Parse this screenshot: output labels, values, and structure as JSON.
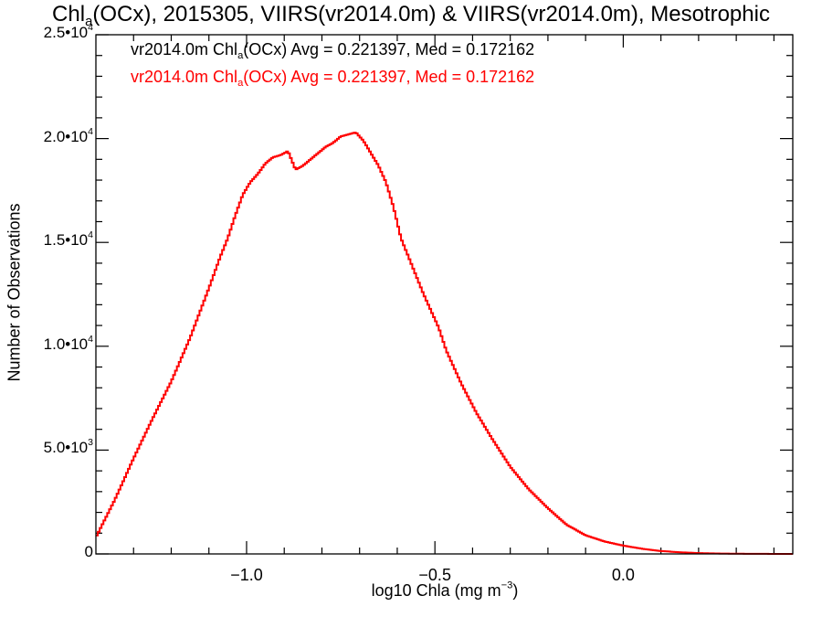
{
  "chart_data": {
    "type": "line",
    "title": "Chlₐ(OCx), 2015305, VIIRS(vr2014.0m) & VIIRS(vr2014.0m), Mesotrophic",
    "title_parts": {
      "pre": "Chl",
      "sub": "a",
      "post": "(OCx), 2015305, VIIRS(vr2014.0m) & VIIRS(vr2014.0m), Mesotrophic"
    },
    "xlabel": "log10 Chla (mg m⁻³)",
    "xlabel_parts": {
      "pre": "log10 Chla (mg m",
      "sup": "−3",
      "post": ")"
    },
    "ylabel": "Number of Observations",
    "xlim": [
      -1.4,
      0.45
    ],
    "ylim": [
      0,
      25000
    ],
    "grid": false,
    "x_ticks": [
      {
        "value": -1.0,
        "label": "−1.0"
      },
      {
        "value": -0.5,
        "label": "−0.5"
      },
      {
        "value": 0.0,
        "label": "0.0"
      }
    ],
    "y_ticks": [
      {
        "value": 0,
        "mant": "0",
        "exp": ""
      },
      {
        "value": 5000,
        "mant": "5.0•10",
        "exp": "3"
      },
      {
        "value": 10000,
        "mant": "1.0•10",
        "exp": "4"
      },
      {
        "value": 15000,
        "mant": "1.5•10",
        "exp": "4"
      },
      {
        "value": 20000,
        "mant": "2.0•10",
        "exp": "4"
      },
      {
        "value": 25000,
        "mant": "2.5•10",
        "exp": "4"
      }
    ],
    "annotations": [
      {
        "text": "vr2014.0m Chlₐ(OCx) Avg = 0.221397, Med = 0.172162",
        "pre": "vr2014.0m Chl",
        "sub": "a",
        "post": "(OCx) Avg = 0.221397, Med = 0.172162",
        "color": "#000000"
      },
      {
        "text": "vr2014.0m Chlₐ(OCx) Avg = 0.221397, Med = 0.172162",
        "pre": "vr2014.0m Chl",
        "sub": "a",
        "post": "(OCx) Avg = 0.221397, Med = 0.172162",
        "color": "#ff0000"
      }
    ],
    "series": [
      {
        "step": "histogram",
        "color": "#ff0000",
        "x": [
          -1.4,
          -1.35,
          -1.3,
          -1.25,
          -1.2,
          -1.15,
          -1.1,
          -1.07,
          -1.05,
          -1.03,
          -1.01,
          -0.99,
          -0.97,
          -0.95,
          -0.93,
          -0.91,
          -0.89,
          -0.87,
          -0.85,
          -0.83,
          -0.81,
          -0.79,
          -0.77,
          -0.75,
          -0.73,
          -0.71,
          -0.69,
          -0.67,
          -0.65,
          -0.63,
          -0.61,
          -0.59,
          -0.57,
          -0.55,
          -0.53,
          -0.51,
          -0.49,
          -0.47,
          -0.45,
          -0.43,
          -0.41,
          -0.39,
          -0.37,
          -0.35,
          -0.3,
          -0.25,
          -0.2,
          -0.15,
          -0.1,
          -0.05,
          0.0,
          0.05,
          0.1,
          0.15,
          0.2,
          0.25,
          0.3,
          0.35,
          0.4,
          0.45
        ],
        "y": [
          800,
          2600,
          4600,
          6500,
          8300,
          10400,
          12800,
          14300,
          15200,
          16300,
          17300,
          17900,
          18300,
          18800,
          19100,
          19200,
          19400,
          18500,
          18700,
          19000,
          19300,
          19600,
          19800,
          20100,
          20200,
          20300,
          19900,
          19300,
          18700,
          17900,
          16700,
          15200,
          14300,
          13400,
          12500,
          11700,
          10900,
          9800,
          9000,
          8200,
          7500,
          6800,
          6200,
          5600,
          4200,
          3100,
          2200,
          1400,
          900,
          600,
          400,
          250,
          140,
          80,
          40,
          20,
          10,
          5,
          2,
          0
        ]
      }
    ]
  }
}
